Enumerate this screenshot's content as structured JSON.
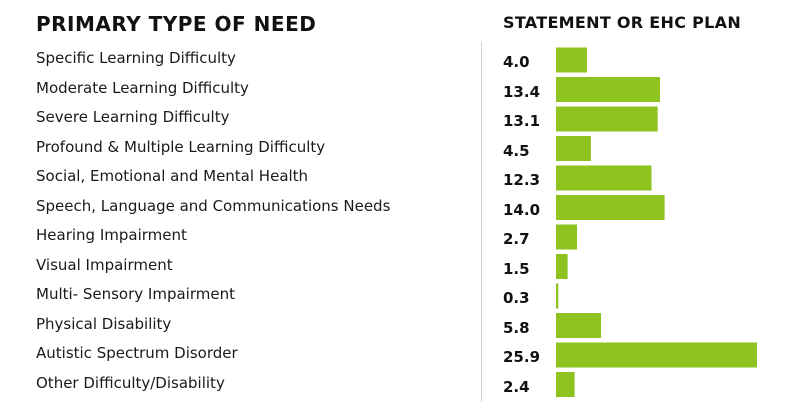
{
  "chart_data": {
    "type": "bar",
    "orientation": "horizontal",
    "category_header": "PRIMARY TYPE OF NEED",
    "value_header": "STATEMENT OR EHC PLAN",
    "categories": [
      "Specific Learning Difficulty",
      "Moderate Learning Difficulty",
      "Severe Learning Difficulty",
      "Profound & Multiple Learning Difficulty",
      "Social, Emotional and Mental Health",
      "Speech, Language and Communications Needs",
      "Hearing Impairment",
      "Visual Impairment",
      "Multi- Sensory Impairment",
      "Physical Disability",
      "Autistic Spectrum Disorder",
      "Other Difficulty/Disability"
    ],
    "values": [
      4.0,
      13.4,
      13.1,
      4.5,
      12.3,
      14.0,
      2.7,
      1.5,
      0.3,
      5.8,
      25.9,
      2.4
    ],
    "value_labels": [
      "4.0",
      "13.4",
      "13.1",
      "4.5",
      "12.3",
      "14.0",
      "2.7",
      "1.5",
      "0.3",
      "5.8",
      "25.9",
      "2.4"
    ],
    "xlim": [
      0,
      25.9
    ],
    "grid": false,
    "bar_color": "#8dc21f"
  }
}
